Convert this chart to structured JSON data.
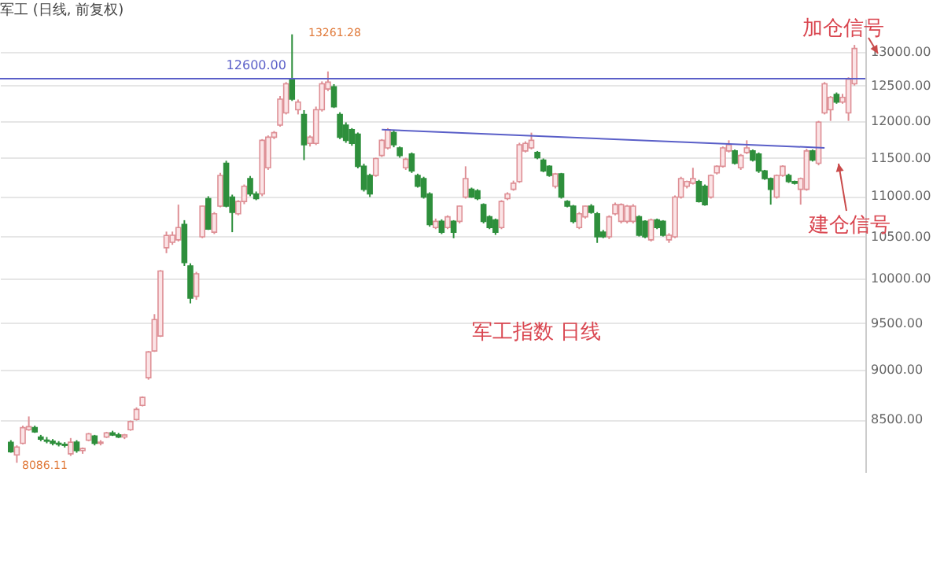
{
  "chart_data": {
    "type": "candlestick",
    "title": "军工 (日线, 前复权)",
    "categories": [
      null,
      null,
      null,
      null,
      null,
      null,
      null,
      null,
      null,
      null,
      null,
      null,
      null,
      null,
      null,
      null,
      null,
      null,
      null,
      null,
      null,
      null,
      null,
      null,
      null,
      null,
      null,
      null,
      null,
      null,
      null,
      null,
      null,
      null,
      null,
      null,
      null,
      null,
      null,
      null,
      null,
      null,
      null,
      null,
      null,
      null,
      null,
      null,
      null,
      null,
      null,
      null,
      null,
      null,
      null,
      null,
      null,
      null,
      null,
      null,
      null,
      null,
      null,
      null,
      null,
      null,
      null,
      null,
      null,
      null,
      null,
      null,
      null,
      null,
      null,
      null,
      null,
      null,
      null,
      null,
      null,
      null,
      null,
      null,
      null,
      null,
      null,
      null,
      null,
      null,
      null,
      null,
      null,
      null,
      null,
      null,
      null,
      null,
      null,
      null,
      null,
      null,
      null,
      null,
      null,
      null,
      null,
      null,
      null,
      null,
      null,
      null,
      null,
      null,
      null,
      null,
      null,
      null,
      null,
      null,
      null,
      null,
      null,
      null,
      null,
      null,
      null,
      null,
      null,
      null,
      null,
      null,
      null,
      null,
      null,
      null,
      null,
      null,
      null,
      null,
      null,
      null
    ],
    "ohlc": [
      [
        8278,
        8300,
        8180,
        8190
      ],
      [
        8160,
        8250,
        8086.11,
        8234
      ],
      [
        8270,
        8440,
        8260,
        8420
      ],
      [
        8400,
        8530,
        8390,
        8430
      ],
      [
        8420,
        8440,
        8370,
        8380
      ],
      [
        8330,
        8350,
        8290,
        8310
      ],
      [
        8300,
        8330,
        8270,
        8290
      ],
      [
        8290,
        8310,
        8250,
        8270
      ],
      [
        8270,
        8290,
        8240,
        8260
      ],
      [
        8260,
        8280,
        8230,
        8250
      ],
      [
        8170,
        8320,
        8150,
        8280
      ],
      [
        8280,
        8300,
        8180,
        8200
      ],
      [
        8200,
        8230,
        8170,
        8220
      ],
      [
        8300,
        8370,
        8290,
        8360
      ],
      [
        8340,
        8350,
        8250,
        8270
      ],
      [
        8270,
        8300,
        8250,
        8280
      ],
      [
        8330,
        8380,
        8320,
        8370
      ],
      [
        8370,
        8390,
        8340,
        8350
      ],
      [
        8350,
        8370,
        8320,
        8330
      ],
      [
        8330,
        8360,
        8310,
        8350
      ],
      [
        8400,
        8490,
        8390,
        8480
      ],
      [
        8500,
        8620,
        8490,
        8600
      ],
      [
        8640,
        8730,
        8630,
        8720
      ],
      [
        8920,
        9200,
        8900,
        9190
      ],
      [
        9200,
        9600,
        9190,
        9540
      ],
      [
        9360,
        10100,
        9350,
        10090
      ],
      [
        10365,
        10560,
        10300,
        10513
      ],
      [
        10430,
        10560,
        10400,
        10516
      ],
      [
        10460,
        10894,
        10440,
        10610
      ],
      [
        10647,
        10700,
        10150,
        10190
      ],
      [
        10150,
        10180,
        9720,
        9780
      ],
      [
        9800,
        10080,
        9760,
        10058
      ],
      [
        10497,
        10880,
        10480,
        10875
      ],
      [
        10970,
        11000,
        10580,
        10590
      ],
      [
        10553,
        10800,
        10530,
        10779
      ],
      [
        10875,
        11300,
        10860,
        11267
      ],
      [
        11427,
        11460,
        10860,
        10875
      ],
      [
        10990,
        11020,
        10553,
        10798
      ],
      [
        10779,
        10950,
        10760,
        10933
      ],
      [
        10933,
        11150,
        10900,
        11127
      ],
      [
        11227,
        11260,
        11000,
        11029
      ],
      [
        11029,
        11060,
        10950,
        10971
      ],
      [
        11029,
        11750,
        11000,
        11734
      ],
      [
        11367,
        11800,
        11340,
        11776
      ],
      [
        11776,
        11860,
        11750,
        11838
      ],
      [
        11942,
        12350,
        11920,
        12306
      ],
      [
        12112,
        12550,
        12090,
        12526
      ],
      [
        12592,
        13261.28,
        12280,
        12306
      ],
      [
        12155,
        12300,
        12090,
        12263
      ],
      [
        12090,
        12150,
        11469,
        11673
      ],
      [
        11693,
        11800,
        11650,
        11776
      ],
      [
        11693,
        12200,
        11670,
        12155
      ],
      [
        12155,
        12560,
        12130,
        12526
      ],
      [
        12450,
        12705,
        12420,
        12550
      ],
      [
        12481,
        12520,
        12180,
        12198
      ],
      [
        12090,
        12120,
        11750,
        11776
      ],
      [
        11942,
        11980,
        11700,
        11734
      ],
      [
        11879,
        11900,
        11660,
        11693
      ],
      [
        11817,
        11840,
        11360,
        11387
      ],
      [
        11387,
        11420,
        11060,
        11088
      ],
      [
        11267,
        11290,
        10990,
        11029
      ],
      [
        11267,
        11500,
        11250,
        11490
      ],
      [
        11530,
        11750,
        11510,
        11734
      ],
      [
        11632,
        11900,
        11610,
        11879
      ],
      [
        11838,
        11870,
        11640,
        11673
      ],
      [
        11632,
        11650,
        11500,
        11530
      ],
      [
        11367,
        11500,
        11340,
        11480
      ],
      [
        11550,
        11570,
        11300,
        11327
      ],
      [
        11267,
        11290,
        11110,
        11127
      ],
      [
        11227,
        11250,
        10970,
        10990
      ],
      [
        11029,
        11050,
        10620,
        10647
      ],
      [
        10609,
        10720,
        10590,
        10685
      ],
      [
        10685,
        10710,
        10530,
        10553
      ],
      [
        10609,
        10760,
        10590,
        10741
      ],
      [
        10685,
        10700,
        10480,
        10553
      ],
      [
        10685,
        10880,
        10660,
        10875
      ],
      [
        10990,
        11387,
        10970,
        11227
      ],
      [
        11088,
        11110,
        10980,
        10990
      ],
      [
        11070,
        11090,
        10950,
        10971
      ],
      [
        10894,
        10910,
        10660,
        10685
      ],
      [
        10741,
        10760,
        10590,
        10609
      ],
      [
        10703,
        10720,
        10520,
        10553
      ],
      [
        10609,
        10950,
        10590,
        10933
      ],
      [
        10971,
        11050,
        10950,
        11029
      ],
      [
        11088,
        11200,
        11070,
        11167
      ],
      [
        11188,
        11700,
        11170,
        11673
      ],
      [
        11591,
        11720,
        11570,
        11693
      ],
      [
        11632,
        11838,
        11610,
        11734
      ],
      [
        11570,
        11590,
        11480,
        11500
      ],
      [
        11469,
        11490,
        11310,
        11327
      ],
      [
        11387,
        11400,
        11250,
        11267
      ],
      [
        11127,
        11300,
        11100,
        11287
      ],
      [
        11287,
        11300,
        10970,
        10990
      ],
      [
        10933,
        10950,
        10860,
        10875
      ],
      [
        10875,
        10890,
        10660,
        10685
      ],
      [
        10609,
        10800,
        10590,
        10779
      ],
      [
        10741,
        10880,
        10720,
        10875
      ],
      [
        10875,
        10900,
        10780,
        10798
      ],
      [
        10779,
        10800,
        10423,
        10497
      ],
      [
        10553,
        10580,
        10480,
        10497
      ],
      [
        10497,
        10760,
        10470,
        10741
      ],
      [
        10779,
        10920,
        10760,
        10894
      ],
      [
        10685,
        10910,
        10660,
        10894
      ],
      [
        10685,
        10890,
        10660,
        10875
      ],
      [
        10685,
        10900,
        10660,
        10875
      ],
      [
        10741,
        10760,
        10500,
        10516
      ],
      [
        10685,
        10700,
        10480,
        10497
      ],
      [
        10460,
        10720,
        10440,
        10703
      ],
      [
        10703,
        10720,
        10590,
        10609
      ],
      [
        10685,
        10700,
        10500,
        10516
      ],
      [
        10460,
        10540,
        10423,
        10516
      ],
      [
        10497,
        11010,
        10480,
        10990
      ],
      [
        10990,
        11250,
        10970,
        11227
      ],
      [
        11127,
        11200,
        11100,
        11188
      ],
      [
        11167,
        11367,
        11150,
        11227
      ],
      [
        11188,
        11210,
        10920,
        10933
      ],
      [
        11127,
        11150,
        10880,
        10894
      ],
      [
        10990,
        11280,
        10970,
        11267
      ],
      [
        11300,
        11400,
        11280,
        11387
      ],
      [
        11387,
        11650,
        11370,
        11632
      ],
      [
        11591,
        11734,
        11570,
        11673
      ],
      [
        11591,
        11610,
        11410,
        11427
      ],
      [
        11367,
        11550,
        11340,
        11530
      ],
      [
        11570,
        11734,
        11550,
        11632
      ],
      [
        11591,
        11610,
        11450,
        11469
      ],
      [
        11550,
        11570,
        11300,
        11327
      ],
      [
        11327,
        11340,
        11210,
        11227
      ],
      [
        11227,
        11240,
        10894,
        11088
      ],
      [
        10990,
        11280,
        10970,
        11267
      ],
      [
        11267,
        11400,
        11250,
        11387
      ],
      [
        11267,
        11290,
        11170,
        11188
      ],
      [
        11188,
        11200,
        11150,
        11167
      ],
      [
        11088,
        11240,
        10894,
        11227
      ],
      [
        11088,
        11620,
        11070,
        11591
      ],
      [
        11591,
        11610,
        11450,
        11469
      ],
      [
        11427,
        12000,
        11400,
        11983
      ],
      [
        12112,
        12550,
        12090,
        12526
      ],
      [
        12155,
        12350,
        12000,
        12330
      ],
      [
        12371,
        12400,
        12240,
        12263
      ],
      [
        12263,
        12380,
        12240,
        12330
      ],
      [
        12112,
        12620,
        12000,
        12592
      ],
      [
        12526,
        13100,
        12500,
        13046
      ]
    ],
    "series": [
      {
        "type": "line",
        "values": [
          null,
          null,
          null,
          null,
          null,
          null,
          null,
          null,
          null,
          null,
          null,
          null,
          null,
          null,
          null,
          null,
          null,
          null,
          null,
          null,
          null,
          null,
          null,
          null,
          null,
          null,
          null,
          null,
          null,
          null,
          null,
          null,
          null,
          null,
          null,
          null,
          null,
          null,
          null,
          null,
          null,
          null,
          null,
          null,
          null,
          null,
          null,
          null,
          null,
          null,
          null,
          null,
          null,
          null,
          null,
          null,
          null,
          null,
          null,
          null,
          null,
          null,
          11879,
          null,
          null,
          null,
          null,
          null,
          null,
          null,
          null,
          null,
          null,
          null,
          null,
          null,
          null,
          null,
          null,
          null,
          null,
          null,
          null,
          null,
          null,
          null,
          null,
          null,
          null,
          null,
          null,
          null,
          null,
          null,
          null,
          null,
          null,
          null,
          null,
          null,
          null,
          null,
          null,
          null,
          null,
          null,
          null,
          null,
          null,
          null,
          null,
          null,
          null,
          null,
          null,
          null,
          null,
          null,
          null,
          null,
          null,
          null,
          null,
          null,
          null,
          null,
          null,
          null,
          null,
          null,
          null,
          null,
          null,
          null,
          null,
          null,
          11632,
          null,
          null,
          null,
          null,
          null
        ],
        "color": "#5a5fc8"
      }
    ],
    "ref_lines": [
      {
        "axis": "y",
        "value": 12600,
        "label": "12600.00",
        "color": "#5a5fc8"
      }
    ],
    "annotations": [
      "13261.28",
      "8086.11",
      "加仓信号",
      "建仓信号",
      "军工指数  日线"
    ],
    "log": true,
    "ylim": [
      8000,
      13500
    ],
    "yticks": [
      {
        "value": 8500,
        "label": "8500.00"
      },
      {
        "value": 9000,
        "label": "9000.00"
      },
      {
        "value": 9500,
        "label": "9500.00"
      },
      {
        "value": 10000,
        "label": "10000.00"
      },
      {
        "value": 10500,
        "label": "10500.00"
      },
      {
        "value": 11000,
        "label": "11000.00"
      },
      {
        "value": 11500,
        "label": "11500.00"
      },
      {
        "value": 12000,
        "label": "12000.00"
      },
      {
        "value": 12500,
        "label": "12500.00"
      },
      {
        "value": 13000,
        "label": "13000.00"
      }
    ],
    "grid": "y",
    "tick_labels": "y"
  }
}
